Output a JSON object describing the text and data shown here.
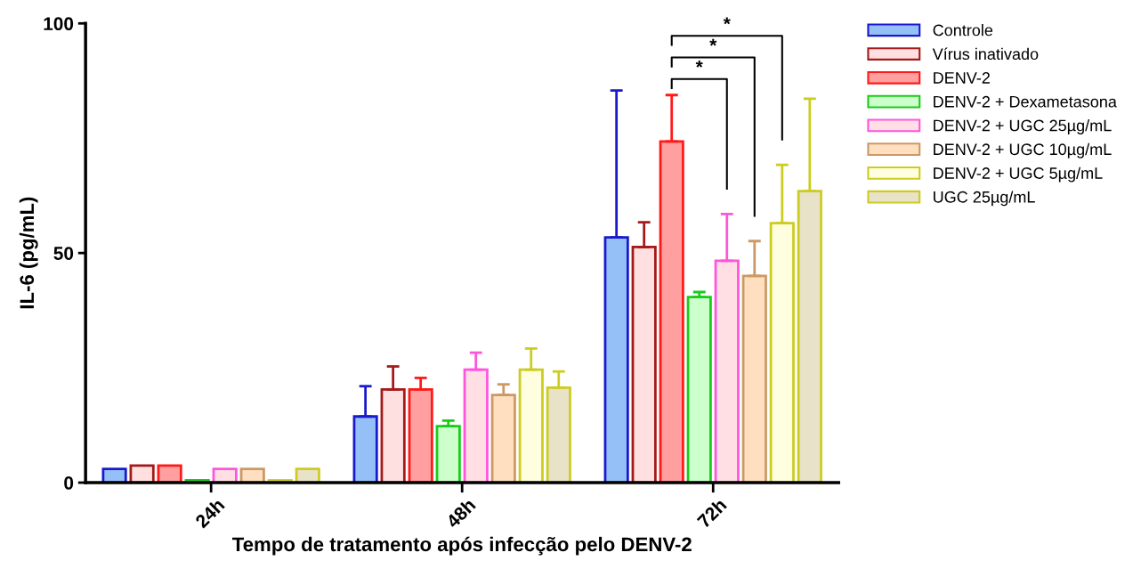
{
  "chart_data": {
    "type": "bar",
    "xlabel": "Tempo de tratamento após infecção pelo DENV-2",
    "ylabel": "IL-6 (pg/mL)",
    "categories": [
      "24h",
      "48h",
      "72h"
    ],
    "series": [
      {
        "name": "Controle",
        "color": "#94bff7",
        "values": [
          3.0,
          14.4,
          53.4
        ],
        "errors": [
          null,
          6.6,
          32.0
        ]
      },
      {
        "name": "Vírus inativado",
        "color": "#ffe0e0",
        "values": [
          3.7,
          20.3,
          51.3
        ],
        "errors": [
          null,
          5.0,
          5.4
        ]
      },
      {
        "name": "DENV-2",
        "color": "#ff9f9f",
        "values": [
          3.7,
          20.3,
          74.3
        ],
        "errors": [
          null,
          2.5,
          10.1
        ]
      },
      {
        "name": "DENV-2 + Dexametasona",
        "color": "#ccffcc",
        "values": [
          0.5,
          12.3,
          40.4
        ],
        "errors": [
          null,
          1.2,
          1.1
        ]
      },
      {
        "name": "DENV-2 + UGC 25µg/mL",
        "color": "#ffdfe3",
        "values": [
          3.0,
          24.6,
          48.3
        ],
        "errors": [
          null,
          3.7,
          10.2
        ]
      },
      {
        "name": "DENV-2 + UGC 10µg/mL",
        "color": "#ffdfbf",
        "values": [
          3.0,
          19.1,
          45.0
        ],
        "errors": [
          null,
          2.3,
          7.6
        ]
      },
      {
        "name": "DENV-2 + UGC 5µg/mL",
        "color": "#ffffe0",
        "values": [
          0.5,
          24.6,
          56.5
        ],
        "errors": [
          null,
          4.6,
          12.7
        ]
      },
      {
        "name": "UGC 25µg/mL",
        "color": "#e8e2c8",
        "values": [
          3.0,
          20.7,
          63.5
        ],
        "errors": [
          null,
          3.5,
          20.1
        ]
      }
    ],
    "ylim": [
      0,
      100
    ],
    "yticks": [
      0,
      50,
      100
    ],
    "grid": false,
    "legend": "top right",
    "annotations": [
      "*",
      "*",
      "*"
    ]
  }
}
